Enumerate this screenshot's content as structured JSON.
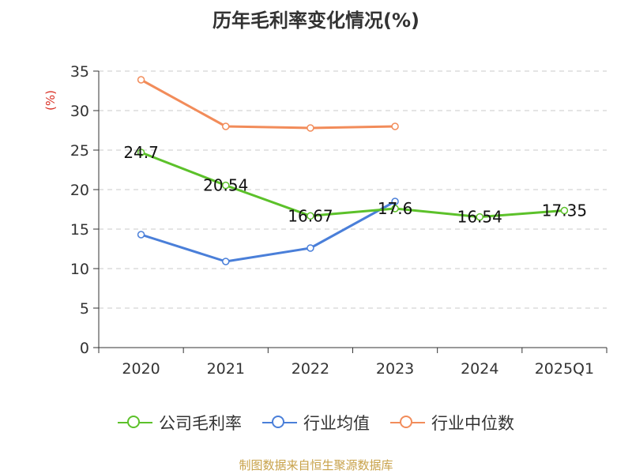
{
  "chart_data": {
    "type": "line",
    "title": "历年毛利率变化情况(%)",
    "ylabel": "(%)",
    "xlabel": "",
    "ylim": [
      0,
      35
    ],
    "yticks": [
      "0",
      "5",
      "10",
      "15",
      "20",
      "25",
      "30",
      "35"
    ],
    "categories": [
      "2020",
      "2021",
      "2022",
      "2023",
      "2024",
      "2025Q1"
    ],
    "grid": true,
    "legend_position": "bottom",
    "series": [
      {
        "name": "公司毛利率",
        "color": "#5cc12a",
        "values": [
          24.7,
          20.54,
          16.67,
          17.6,
          16.54,
          17.35
        ],
        "labels": [
          "24.7",
          "20.54",
          "16.67",
          "17.6",
          "16.54",
          "17.35"
        ]
      },
      {
        "name": "行业均值",
        "color": "#4a7fd9",
        "values": [
          14.3,
          10.9,
          12.6,
          18.5,
          null,
          null
        ]
      },
      {
        "name": "行业中位数",
        "color": "#f28c5a",
        "values": [
          33.9,
          28.0,
          27.8,
          28.0,
          null,
          null
        ]
      }
    ]
  },
  "footer": {
    "source": "制图数据来自恒生聚源数据库"
  }
}
